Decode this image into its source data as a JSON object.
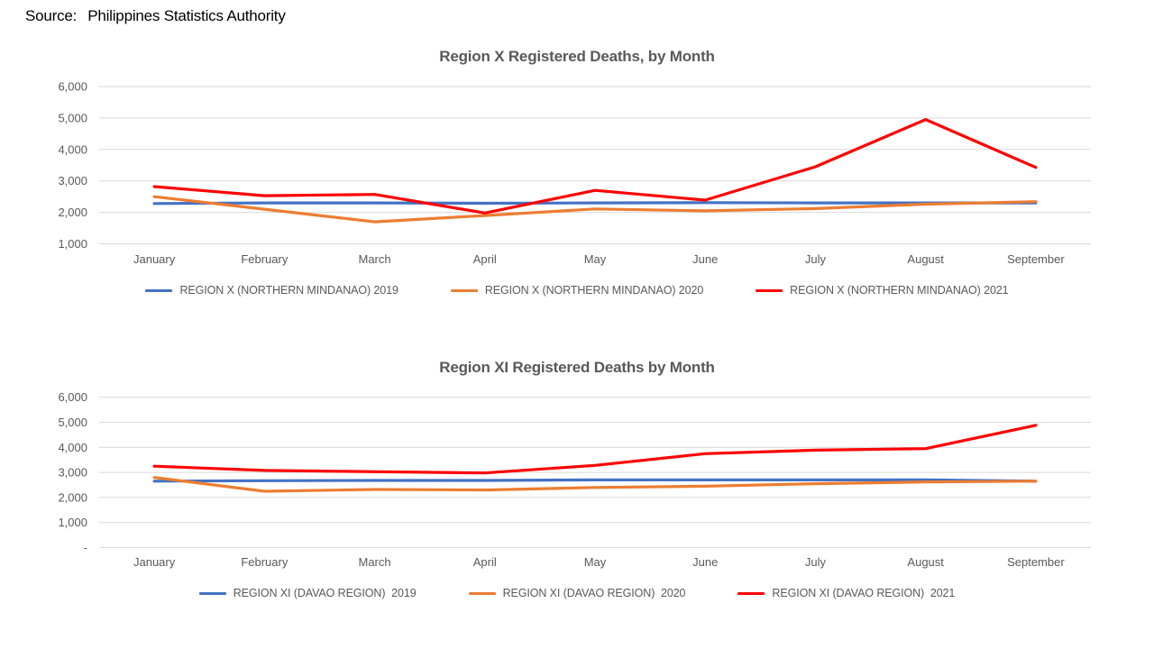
{
  "source": {
    "label": "Source:",
    "text": "Philippines Statistics Authority"
  },
  "colors": {
    "series_2019": "#4472C4",
    "series_2020": "#ED7D31",
    "series_2021": "#FF0000",
    "title_text": "#595959",
    "axis_text": "#595959",
    "gridline": "#D9D9D9"
  },
  "chart_data": [
    {
      "type": "line",
      "title": "Region X Registered Deaths, by Month",
      "categories": [
        "January",
        "February",
        "March",
        "April",
        "May",
        "June",
        "July",
        "August",
        "September"
      ],
      "series": [
        {
          "name": "REGION X (NORTHERN MINDANAO) 2019",
          "color": "#4472C4",
          "values": [
            2280,
            2300,
            2300,
            2290,
            2300,
            2310,
            2300,
            2300,
            2300
          ]
        },
        {
          "name": "REGION X (NORTHERN MINDANAO) 2020",
          "color": "#ED7D31",
          "values": [
            2500,
            2100,
            1700,
            1900,
            2110,
            2050,
            2120,
            2260,
            2340
          ]
        },
        {
          "name": "REGION X (NORTHERN MINDANAO) 2021",
          "color": "#FF0000",
          "values": [
            2820,
            2530,
            2570,
            1980,
            2700,
            2390,
            3450,
            4950,
            3430
          ]
        }
      ],
      "ylim": [
        1000,
        6000
      ],
      "yticks": [
        {
          "value": 6000,
          "label": "6,000"
        },
        {
          "value": 5000,
          "label": "5,000"
        },
        {
          "value": 4000,
          "label": "4,000"
        },
        {
          "value": 3000,
          "label": "3,000"
        },
        {
          "value": 2000,
          "label": "2,000"
        },
        {
          "value": 1000,
          "label": "1,000"
        }
      ],
      "grid": true,
      "legend_position": "bottom"
    },
    {
      "type": "line",
      "title": "Region XI Registered Deaths by Month",
      "categories": [
        "January",
        "February",
        "March",
        "April",
        "May",
        "June",
        "July",
        "August",
        "September"
      ],
      "series": [
        {
          "name": "REGION XI (DAVAO REGION)  2019",
          "color": "#4472C4",
          "values": [
            2650,
            2670,
            2680,
            2680,
            2700,
            2700,
            2700,
            2700,
            2650
          ]
        },
        {
          "name": "REGION XI (DAVAO REGION)  2020",
          "color": "#ED7D31",
          "values": [
            2800,
            2250,
            2320,
            2300,
            2400,
            2450,
            2550,
            2620,
            2650
          ]
        },
        {
          "name": "REGION XI (DAVAO REGION)  2021",
          "color": "#FF0000",
          "values": [
            3250,
            3080,
            3030,
            2980,
            3280,
            3750,
            3890,
            3950,
            4880
          ]
        }
      ],
      "ylim": [
        0,
        6000
      ],
      "yticks": [
        {
          "value": 6000,
          "label": "6,000"
        },
        {
          "value": 5000,
          "label": "5,000"
        },
        {
          "value": 4000,
          "label": "4,000"
        },
        {
          "value": 3000,
          "label": "3,000"
        },
        {
          "value": 2000,
          "label": "2,000"
        },
        {
          "value": 1000,
          "label": "1,000"
        },
        {
          "value": 0,
          "label": "-"
        }
      ],
      "grid": true,
      "legend_position": "bottom"
    }
  ]
}
